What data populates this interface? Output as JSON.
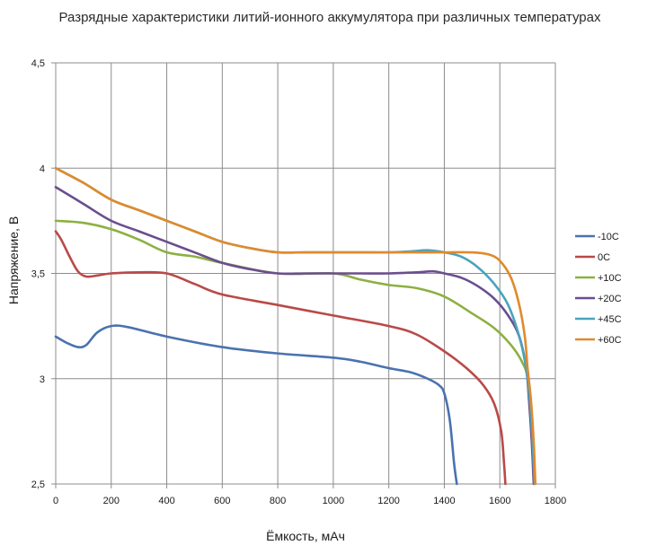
{
  "chart_data": {
    "type": "line",
    "title": "Разрядные характеристики литий-ионного аккумулятора при различных температурах",
    "xlabel": "Ёмкость, мАч",
    "ylabel": "Напряжение, В",
    "xlim": [
      0,
      1800
    ],
    "ylim": [
      2.5,
      4.5
    ],
    "x_ticks": [
      "0",
      "200",
      "400",
      "600",
      "800",
      "1000",
      "1200",
      "1400",
      "1600",
      "1800"
    ],
    "y_ticks": [
      "2,5",
      "3",
      "3,5",
      "4",
      "4,5"
    ],
    "grid": true,
    "legend_position": "right",
    "series": [
      {
        "name": "-10C",
        "color": "#4a72b0",
        "points": [
          [
            0,
            3.2
          ],
          [
            40,
            3.17
          ],
          [
            80,
            3.15
          ],
          [
            110,
            3.16
          ],
          [
            150,
            3.22
          ],
          [
            200,
            3.25
          ],
          [
            260,
            3.245
          ],
          [
            400,
            3.2
          ],
          [
            600,
            3.15
          ],
          [
            800,
            3.12
          ],
          [
            1000,
            3.1
          ],
          [
            1100,
            3.08
          ],
          [
            1200,
            3.05
          ],
          [
            1280,
            3.03
          ],
          [
            1340,
            3.0
          ],
          [
            1380,
            2.97
          ],
          [
            1400,
            2.93
          ],
          [
            1420,
            2.8
          ],
          [
            1435,
            2.6
          ],
          [
            1445,
            2.5
          ]
        ]
      },
      {
        "name": "0C",
        "color": "#b94a48",
        "points": [
          [
            0,
            3.7
          ],
          [
            20,
            3.66
          ],
          [
            50,
            3.58
          ],
          [
            80,
            3.51
          ],
          [
            110,
            3.485
          ],
          [
            150,
            3.49
          ],
          [
            200,
            3.5
          ],
          [
            300,
            3.505
          ],
          [
            400,
            3.5
          ],
          [
            500,
            3.45
          ],
          [
            600,
            3.4
          ],
          [
            800,
            3.35
          ],
          [
            1000,
            3.3
          ],
          [
            1200,
            3.25
          ],
          [
            1300,
            3.21
          ],
          [
            1400,
            3.13
          ],
          [
            1480,
            3.05
          ],
          [
            1540,
            2.97
          ],
          [
            1580,
            2.88
          ],
          [
            1605,
            2.75
          ],
          [
            1615,
            2.6
          ],
          [
            1620,
            2.5
          ]
        ]
      },
      {
        "name": "+10C",
        "color": "#8db042",
        "points": [
          [
            0,
            3.75
          ],
          [
            100,
            3.74
          ],
          [
            200,
            3.71
          ],
          [
            300,
            3.66
          ],
          [
            400,
            3.6
          ],
          [
            500,
            3.58
          ],
          [
            600,
            3.55
          ],
          [
            800,
            3.5
          ],
          [
            1000,
            3.5
          ],
          [
            1100,
            3.47
          ],
          [
            1200,
            3.445
          ],
          [
            1300,
            3.43
          ],
          [
            1400,
            3.39
          ],
          [
            1500,
            3.31
          ],
          [
            1580,
            3.24
          ],
          [
            1640,
            3.16
          ],
          [
            1680,
            3.08
          ],
          [
            1700,
            3.0
          ],
          [
            1712,
            2.8
          ],
          [
            1720,
            2.6
          ],
          [
            1725,
            2.5
          ]
        ]
      },
      {
        "name": "+20C",
        "color": "#6b4e8e",
        "points": [
          [
            0,
            3.91
          ],
          [
            100,
            3.83
          ],
          [
            200,
            3.75
          ],
          [
            300,
            3.7
          ],
          [
            400,
            3.65
          ],
          [
            500,
            3.6
          ],
          [
            600,
            3.55
          ],
          [
            700,
            3.52
          ],
          [
            800,
            3.5
          ],
          [
            900,
            3.5
          ],
          [
            1000,
            3.5
          ],
          [
            1100,
            3.5
          ],
          [
            1200,
            3.5
          ],
          [
            1300,
            3.505
          ],
          [
            1360,
            3.51
          ],
          [
            1400,
            3.5
          ],
          [
            1460,
            3.48
          ],
          [
            1520,
            3.44
          ],
          [
            1580,
            3.38
          ],
          [
            1630,
            3.3
          ],
          [
            1670,
            3.2
          ],
          [
            1695,
            3.05
          ],
          [
            1705,
            2.9
          ],
          [
            1715,
            2.7
          ],
          [
            1722,
            2.5
          ]
        ]
      },
      {
        "name": "+45C",
        "color": "#4aa3bd",
        "points": [
          [
            0,
            4.0
          ],
          [
            100,
            3.93
          ],
          [
            200,
            3.85
          ],
          [
            300,
            3.8
          ],
          [
            400,
            3.75
          ],
          [
            500,
            3.7
          ],
          [
            600,
            3.65
          ],
          [
            700,
            3.62
          ],
          [
            800,
            3.6
          ],
          [
            900,
            3.6
          ],
          [
            1000,
            3.6
          ],
          [
            1100,
            3.6
          ],
          [
            1200,
            3.6
          ],
          [
            1280,
            3.605
          ],
          [
            1340,
            3.61
          ],
          [
            1400,
            3.6
          ],
          [
            1460,
            3.58
          ],
          [
            1520,
            3.53
          ],
          [
            1580,
            3.45
          ],
          [
            1630,
            3.35
          ],
          [
            1670,
            3.2
          ],
          [
            1695,
            3.05
          ],
          [
            1708,
            2.9
          ],
          [
            1718,
            2.7
          ],
          [
            1725,
            2.5
          ]
        ]
      },
      {
        "name": "+60C",
        "color": "#e08a2c",
        "points": [
          [
            0,
            4.0
          ],
          [
            100,
            3.93
          ],
          [
            200,
            3.85
          ],
          [
            300,
            3.8
          ],
          [
            400,
            3.75
          ],
          [
            500,
            3.7
          ],
          [
            600,
            3.65
          ],
          [
            700,
            3.62
          ],
          [
            800,
            3.6
          ],
          [
            900,
            3.6
          ],
          [
            1000,
            3.6
          ],
          [
            1100,
            3.6
          ],
          [
            1200,
            3.6
          ],
          [
            1300,
            3.6
          ],
          [
            1400,
            3.6
          ],
          [
            1500,
            3.6
          ],
          [
            1560,
            3.59
          ],
          [
            1600,
            3.56
          ],
          [
            1640,
            3.48
          ],
          [
            1670,
            3.35
          ],
          [
            1690,
            3.2
          ],
          [
            1700,
            3.05
          ],
          [
            1712,
            2.9
          ],
          [
            1722,
            2.7
          ],
          [
            1728,
            2.5
          ]
        ]
      }
    ]
  }
}
